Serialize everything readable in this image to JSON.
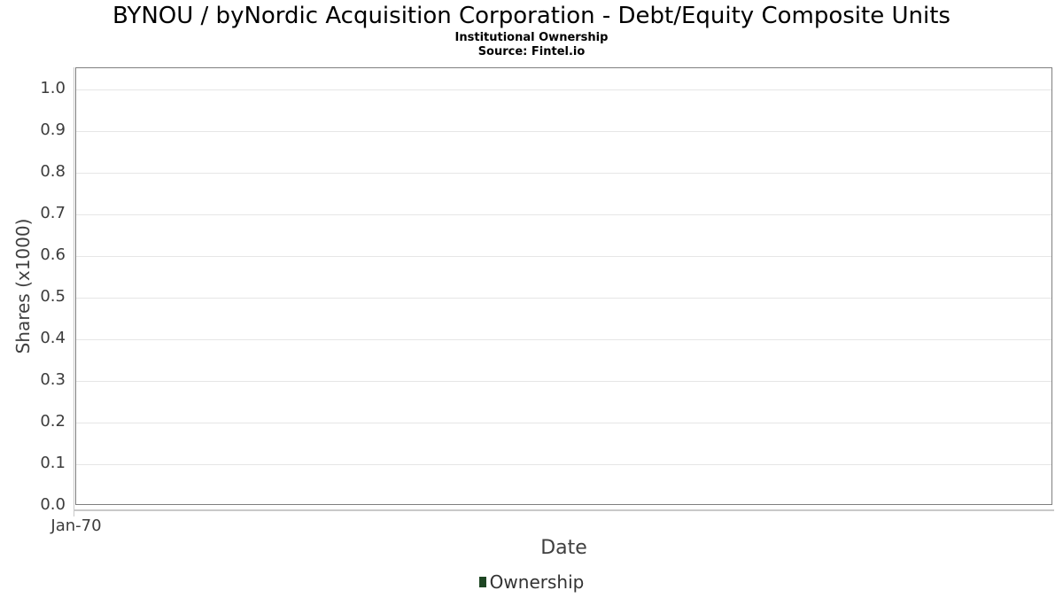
{
  "header": {
    "title": "BYNOU / byNordic Acquisition Corporation - Debt/Equity Composite Units",
    "subtitle": "Institutional Ownership",
    "source": "Source: Fintel.io"
  },
  "legend": {
    "items": [
      {
        "label": "Ownership",
        "marker_color": "#1e4623"
      }
    ]
  },
  "colors": {
    "plot_border": "#7f7f7f",
    "gridline": "#e6e6e6",
    "axis_line": "#c9c9c9",
    "title_text": "#000000",
    "tick_text": "#3c3c3c",
    "axis_title_text": "#3f3f3f",
    "legend_marker": "#1e4623"
  },
  "chart_data": {
    "type": "bar",
    "title": "BYNOU / byNordic Acquisition Corporation - Debt/Equity Composite Units",
    "subtitle": "Institutional Ownership",
    "source": "Source: Fintel.io",
    "xlabel": "Date",
    "ylabel": "Shares (x1000)",
    "x_ticks": [
      "Jan-70"
    ],
    "y_tick_labels": [
      "0.0",
      "0.1",
      "0.2",
      "0.3",
      "0.4",
      "0.5",
      "0.6",
      "0.7",
      "0.8",
      "0.9",
      "1.0"
    ],
    "ylim": [
      0.0,
      1.05
    ],
    "grid": true,
    "legend_position": "bottom",
    "series": [
      {
        "name": "Ownership",
        "color": "#1e4623",
        "x": [],
        "values": []
      }
    ]
  }
}
